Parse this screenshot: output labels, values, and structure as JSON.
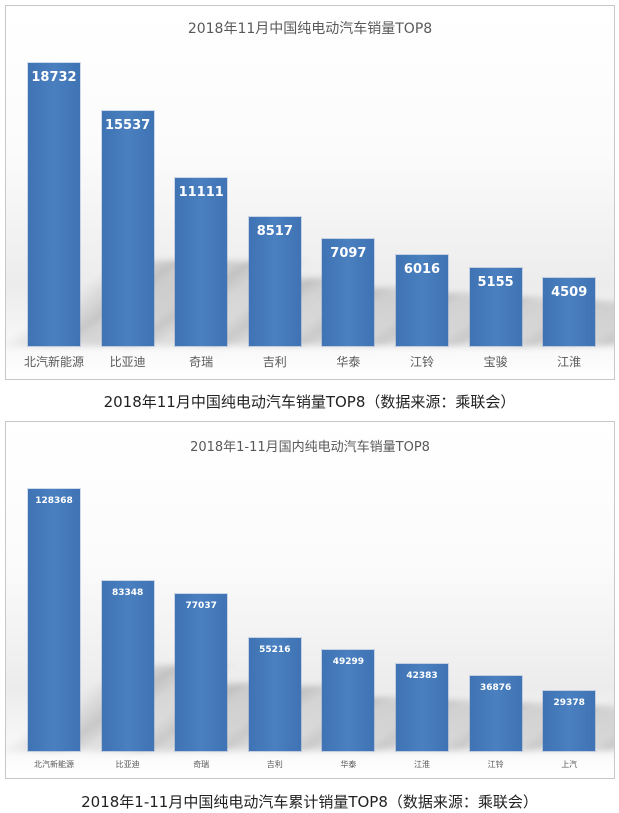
{
  "chart_data": [
    {
      "type": "bar",
      "title": "2018年11月中国纯电动汽车销量TOP8",
      "categories": [
        "北汽新能源",
        "比亚迪",
        "奇瑞",
        "吉利",
        "华泰",
        "江铃",
        "宝骏",
        "江淮"
      ],
      "values": [
        18732,
        15537,
        11111,
        8517,
        7097,
        6016,
        5155,
        4509
      ],
      "xlabel": "",
      "ylabel": "",
      "grid": false,
      "legend": "none",
      "data_labels": true
    },
    {
      "type": "bar",
      "title": "2018年1-11月国内纯电动汽车销量TOP8",
      "categories": [
        "北汽新能源",
        "比亚迪",
        "奇瑞",
        "吉利",
        "华泰",
        "江淮",
        "江铃",
        "上汽"
      ],
      "values": [
        128368,
        83348,
        77037,
        55216,
        49299,
        42383,
        36876,
        29378
      ],
      "xlabel": "",
      "ylabel": "",
      "grid": false,
      "legend": "none",
      "data_labels": true
    }
  ],
  "captions": [
    "2018年11月中国纯电动汽车销量TOP8（数据来源：乘联会）",
    "2018年1-11月中国纯电动汽车累计销量TOP8（数据来源：乘联会）"
  ],
  "colors": {
    "bar": "#4479b9",
    "label_text": "#595959",
    "caption_text": "#222222"
  }
}
